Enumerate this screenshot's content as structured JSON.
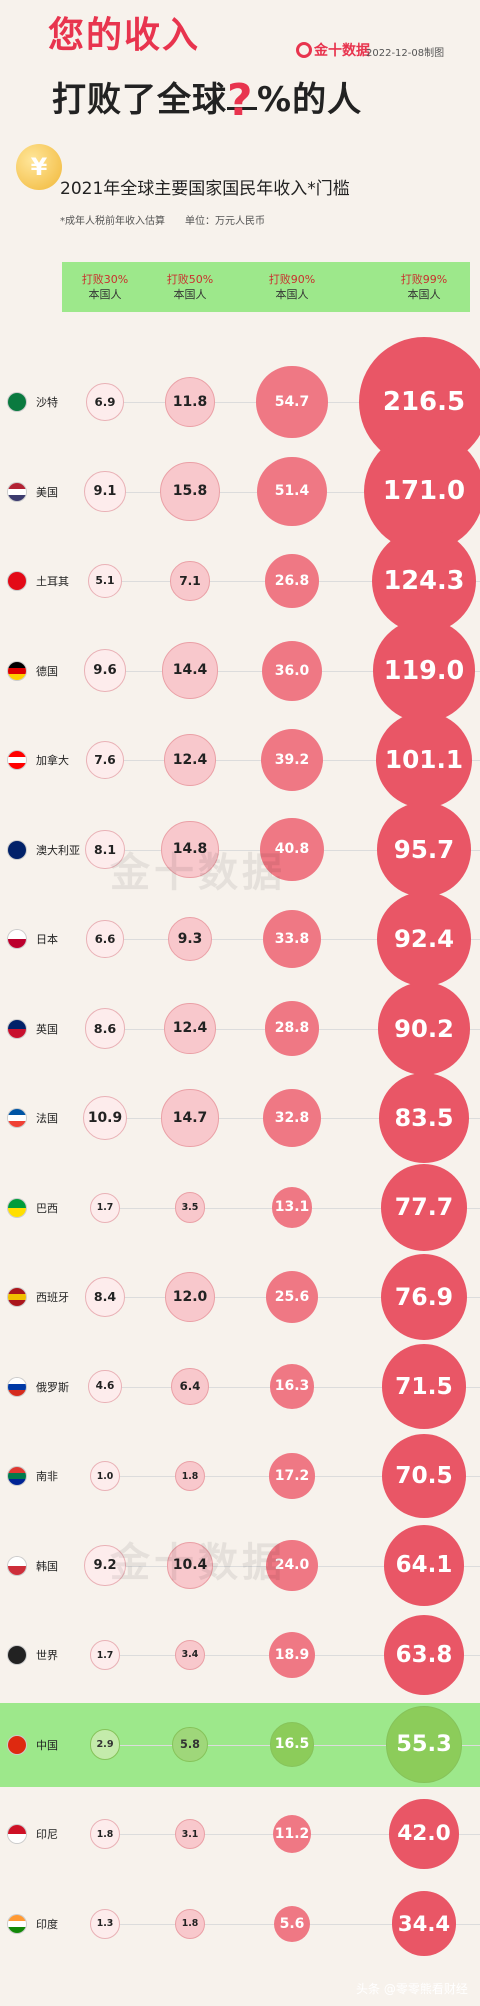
{
  "header": {
    "title_line1": "您的收入",
    "title_line2_a": "打败了全球",
    "title_qmark": "?",
    "title_line2_b": "%的人",
    "brand": "金十数据",
    "date": "2022-12-08制图",
    "coin_symbol": "¥"
  },
  "chart_data": {
    "type": "table",
    "title": "2021年全球主要国家国民年收入*门槛",
    "note": "*成年人税前年收入估算　　单位：万元人民币",
    "columns": [
      {
        "line1": "打败30%",
        "line2": "本国人"
      },
      {
        "line1": "打败50%",
        "line2": "本国人"
      },
      {
        "line1": "打败90%",
        "line2": "本国人"
      },
      {
        "line1": "打败99%",
        "line2": "本国人"
      }
    ],
    "rows": [
      {
        "country": "沙特",
        "values": [
          "6.9",
          "11.8",
          "54.7",
          "216.5"
        ],
        "highlight": false,
        "flag": [
          "#0a7a3f"
        ]
      },
      {
        "country": "美国",
        "values": [
          "9.1",
          "15.8",
          "51.4",
          "171.0"
        ],
        "highlight": false,
        "flag": [
          "#b22234",
          "#ffffff",
          "#3c3b6e"
        ]
      },
      {
        "country": "土耳其",
        "values": [
          "5.1",
          "7.1",
          "26.8",
          "124.3"
        ],
        "highlight": false,
        "flag": [
          "#e30a17"
        ]
      },
      {
        "country": "德国",
        "values": [
          "9.6",
          "14.4",
          "36.0",
          "119.0"
        ],
        "highlight": false,
        "flag": [
          "#000000",
          "#dd0000",
          "#ffce00"
        ]
      },
      {
        "country": "加拿大",
        "values": [
          "7.6",
          "12.4",
          "39.2",
          "101.1"
        ],
        "highlight": false,
        "flag": [
          "#ff0000",
          "#ffffff",
          "#ff0000"
        ]
      },
      {
        "country": "澳大利亚",
        "values": [
          "8.1",
          "14.8",
          "40.8",
          "95.7"
        ],
        "highlight": false,
        "flag": [
          "#012169"
        ]
      },
      {
        "country": "日本",
        "values": [
          "6.6",
          "9.3",
          "33.8",
          "92.4"
        ],
        "highlight": false,
        "flag": [
          "#ffffff",
          "#bc002d"
        ]
      },
      {
        "country": "英国",
        "values": [
          "8.6",
          "12.4",
          "28.8",
          "90.2"
        ],
        "highlight": false,
        "flag": [
          "#012169",
          "#c8102e"
        ]
      },
      {
        "country": "法国",
        "values": [
          "10.9",
          "14.7",
          "32.8",
          "83.5"
        ],
        "highlight": false,
        "flag": [
          "#0055a4",
          "#ffffff",
          "#ef4135"
        ]
      },
      {
        "country": "巴西",
        "values": [
          "1.7",
          "3.5",
          "13.1",
          "77.7"
        ],
        "highlight": false,
        "flag": [
          "#009c3b",
          "#ffdf00"
        ]
      },
      {
        "country": "西班牙",
        "values": [
          "8.4",
          "12.0",
          "25.6",
          "76.9"
        ],
        "highlight": false,
        "flag": [
          "#aa151b",
          "#f1bf00",
          "#aa151b"
        ]
      },
      {
        "country": "俄罗斯",
        "values": [
          "4.6",
          "6.4",
          "16.3",
          "71.5"
        ],
        "highlight": false,
        "flag": [
          "#ffffff",
          "#0039a6",
          "#d52b1e"
        ]
      },
      {
        "country": "南非",
        "values": [
          "1.0",
          "1.8",
          "17.2",
          "70.5"
        ],
        "highlight": false,
        "flag": [
          "#de3831",
          "#007a4d",
          "#002395"
        ]
      },
      {
        "country": "韩国",
        "values": [
          "9.2",
          "10.4",
          "24.0",
          "64.1"
        ],
        "highlight": false,
        "flag": [
          "#ffffff",
          "#cd2e3a"
        ]
      },
      {
        "country": "世界",
        "values": [
          "1.7",
          "3.4",
          "18.9",
          "63.8"
        ],
        "highlight": false,
        "flag": [
          "#222222"
        ]
      },
      {
        "country": "中国",
        "values": [
          "2.9",
          "5.8",
          "16.5",
          "55.3"
        ],
        "highlight": true,
        "flag": [
          "#de2910"
        ]
      },
      {
        "country": "印尼",
        "values": [
          "1.8",
          "3.1",
          "11.2",
          "42.0"
        ],
        "highlight": false,
        "flag": [
          "#ce1126",
          "#ffffff"
        ]
      },
      {
        "country": "印度",
        "values": [
          "1.3",
          "1.8",
          "5.6",
          "34.4"
        ],
        "highlight": false,
        "flag": [
          "#ff9933",
          "#ffffff",
          "#138808"
        ]
      }
    ]
  },
  "watermark": "金十数据",
  "footer": "头条 @零零熊看财经",
  "colors": {
    "accent": "#e8344e",
    "header_band": "#9de88b",
    "bubble_30": "#fdecec",
    "bubble_50": "#f8c8cc",
    "bubble_90": "#ef7884",
    "bubble_99": "#e95666"
  }
}
